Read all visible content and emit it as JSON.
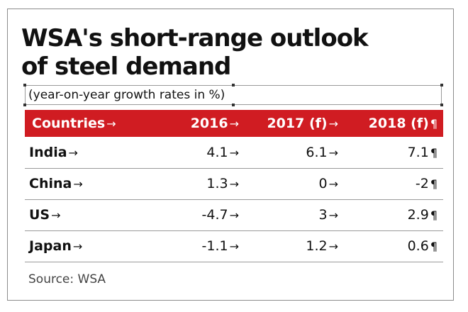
{
  "title_line1": "WSA's short-range outlook",
  "title_line2": "of steel demand",
  "subtitle": "(year-on-year growth rates in %)",
  "source": "Source: WSA",
  "colors": {
    "header_background": "#d01c22",
    "header_text": "#ffffff",
    "body_text": "#111111",
    "rule": "#9a9a9a"
  },
  "chart_data": {
    "type": "table",
    "title": "WSA's short-range outlook of steel demand",
    "subtitle": "(year-on-year growth rates in %)",
    "columns": [
      "Countries",
      "2016",
      "2017 (f)",
      "2018 (f)"
    ],
    "rows": [
      {
        "country": "India",
        "values": [
          "4.1",
          "6.1",
          "7.1"
        ]
      },
      {
        "country": "China",
        "values": [
          "1.3",
          "0",
          "-2"
        ]
      },
      {
        "country": "US",
        "values": [
          "-4.7",
          "3",
          "2.9"
        ]
      },
      {
        "country": "Japan",
        "values": [
          "-1.1",
          "1.2",
          "0.6"
        ]
      }
    ],
    "source": "Source: WSA"
  }
}
